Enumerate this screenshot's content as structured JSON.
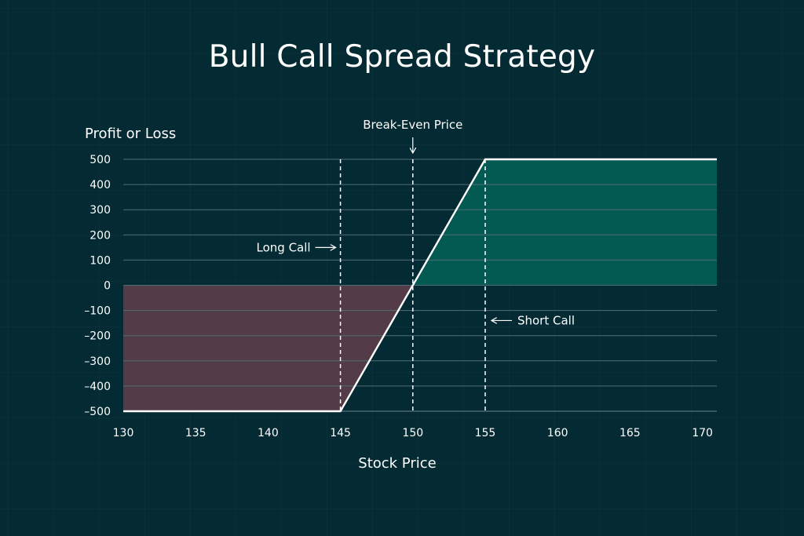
{
  "chart_data": {
    "type": "line",
    "title": "Bull Call Spread Strategy",
    "xlabel": "Stock Price",
    "ylabel": "Profit or Loss",
    "xlim": [
      130,
      171
    ],
    "ylim": [
      -500,
      500
    ],
    "x_ticks": [
      130,
      135,
      140,
      145,
      150,
      155,
      160,
      165,
      170
    ],
    "x_tick_labels": [
      "130",
      "135",
      "140",
      "145",
      "150",
      "155",
      "160",
      "165",
      "170"
    ],
    "y_ticks": [
      500,
      400,
      300,
      200,
      100,
      0,
      -100,
      -200,
      -300,
      -400,
      -500
    ],
    "y_tick_labels": [
      "500",
      "400",
      "300",
      "200",
      "100",
      "0",
      "–100",
      "–200",
      "–300",
      "–400",
      "–500"
    ],
    "grid": "horizontal",
    "series": [
      {
        "values": [
          {
            "x": 130,
            "y": -500
          },
          {
            "x": 145,
            "y": -500
          },
          {
            "x": 150,
            "y": 0
          },
          {
            "x": 155,
            "y": 500
          },
          {
            "x": 171,
            "y": 500
          }
        ]
      }
    ],
    "reference_lines": [
      {
        "x": 145,
        "label": "Long Call",
        "label_y": 150,
        "label_side": "left"
      },
      {
        "x": 150,
        "label": "Break-Even Price",
        "label_side": "top"
      },
      {
        "x": 155,
        "label": "Short Call",
        "label_y": -140,
        "label_side": "right"
      }
    ],
    "colors": {
      "background": "#042a33",
      "grid": "#4f6e74",
      "axis": "#6a878c",
      "line": "#ffffff",
      "profit_fill": "#035a52",
      "loss_fill": "#533c47",
      "text": "#ffffff"
    }
  }
}
